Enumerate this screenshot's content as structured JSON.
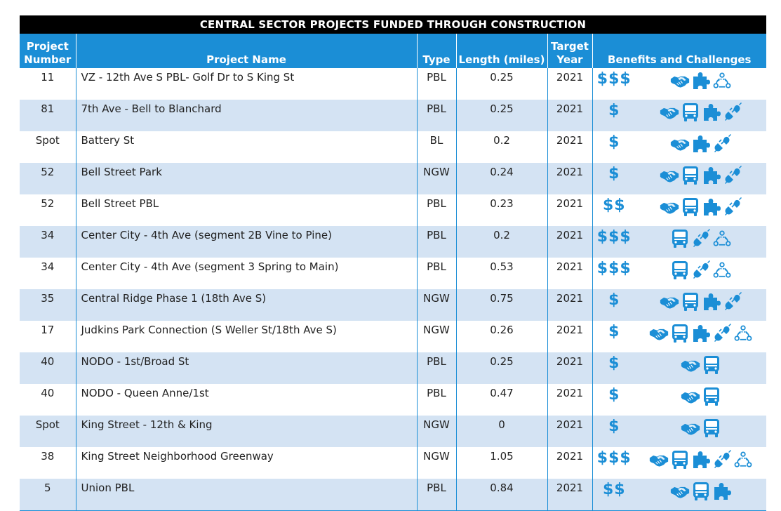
{
  "title": "CENTRAL SECTOR PROJECTS FUNDED THROUGH CONSTRUCTION",
  "headers": {
    "number": "Project Number",
    "number_l1": "Project",
    "number_l2": "Number",
    "name": "Project Name",
    "type": "Type",
    "length": "Length (miles)",
    "year_l1": "Target",
    "year_l2": "Year",
    "benefits": "Benefits and Challenges"
  },
  "colors": {
    "accent": "#1b8ed6",
    "stripe": "#d4e3f3",
    "title_bg": "#000000"
  },
  "rows": [
    {
      "number": "11",
      "name": "VZ - 12th Ave S PBL- Golf Dr to S King St",
      "type": "PBL",
      "length": "0.25",
      "year": "2021",
      "cost": "$$$",
      "icons": [
        "handshake-icon",
        "puzzle-icon",
        "community-icon"
      ]
    },
    {
      "number": "81",
      "name": "7th Ave - Bell to Blanchard",
      "type": "PBL",
      "length": "0.25",
      "year": "2021",
      "cost": "$",
      "icons": [
        "handshake-icon",
        "bus-icon",
        "puzzle-icon",
        "plug-icon"
      ]
    },
    {
      "number": "Spot",
      "name": "Battery St",
      "type": "BL",
      "length": "0.2",
      "year": "2021",
      "cost": "$",
      "icons": [
        "handshake-icon",
        "puzzle-icon",
        "plug-icon"
      ]
    },
    {
      "number": "52",
      "name": "Bell Street Park",
      "type": "NGW",
      "length": "0.24",
      "year": "2021",
      "cost": "$",
      "icons": [
        "handshake-icon",
        "bus-icon",
        "puzzle-icon",
        "plug-icon"
      ]
    },
    {
      "number": "52",
      "name": "Bell Street PBL",
      "type": "PBL",
      "length": "0.23",
      "year": "2021",
      "cost": "$$",
      "icons": [
        "handshake-icon",
        "bus-icon",
        "puzzle-icon",
        "plug-icon"
      ]
    },
    {
      "number": "34",
      "name": "Center City - 4th Ave (segment 2B Vine to Pine)",
      "type": "PBL",
      "length": "0.2",
      "year": "2021",
      "cost": "$$$",
      "icons": [
        "bus-icon",
        "plug-icon",
        "community-icon"
      ]
    },
    {
      "number": "34",
      "name": "Center City - 4th Ave (segment 3 Spring to Main)",
      "type": "PBL",
      "length": "0.53",
      "year": "2021",
      "cost": "$$$",
      "icons": [
        "bus-icon",
        "plug-icon",
        "community-icon"
      ]
    },
    {
      "number": "35",
      "name": "Central Ridge Phase 1 (18th Ave S)",
      "type": "NGW",
      "length": "0.75",
      "year": "2021",
      "cost": "$",
      "icons": [
        "handshake-icon",
        "bus-icon",
        "puzzle-icon",
        "plug-icon"
      ]
    },
    {
      "number": "17",
      "name": "Judkins Park Connection (S Weller St/18th Ave S)",
      "type": "NGW",
      "length": "0.26",
      "year": "2021",
      "cost": "$",
      "icons": [
        "handshake-icon",
        "bus-icon",
        "puzzle-icon",
        "plug-icon",
        "community-icon"
      ]
    },
    {
      "number": "40",
      "name": "NODO - 1st/Broad St",
      "type": "PBL",
      "length": "0.25",
      "year": "2021",
      "cost": "$",
      "icons": [
        "handshake-icon",
        "bus-icon"
      ]
    },
    {
      "number": "40",
      "name": "NODO - Queen Anne/1st",
      "type": "PBL",
      "length": "0.47",
      "year": "2021",
      "cost": "$",
      "icons": [
        "handshake-icon",
        "bus-icon"
      ]
    },
    {
      "number": "Spot",
      "name": "King Street - 12th & King",
      "type": "NGW",
      "length": "0",
      "year": "2021",
      "cost": "$",
      "icons": [
        "handshake-icon",
        "bus-icon"
      ]
    },
    {
      "number": "38",
      "name": "King Street Neighborhood Greenway",
      "type": "NGW",
      "length": "1.05",
      "year": "2021",
      "cost": "$$$",
      "icons": [
        "handshake-icon",
        "bus-icon",
        "puzzle-icon",
        "plug-icon",
        "community-icon"
      ]
    },
    {
      "number": "5",
      "name": "Union PBL",
      "type": "PBL",
      "length": "0.84",
      "year": "2021",
      "cost": "$$",
      "icons": [
        "handshake-icon",
        "bus-icon",
        "puzzle-icon"
      ]
    }
  ]
}
